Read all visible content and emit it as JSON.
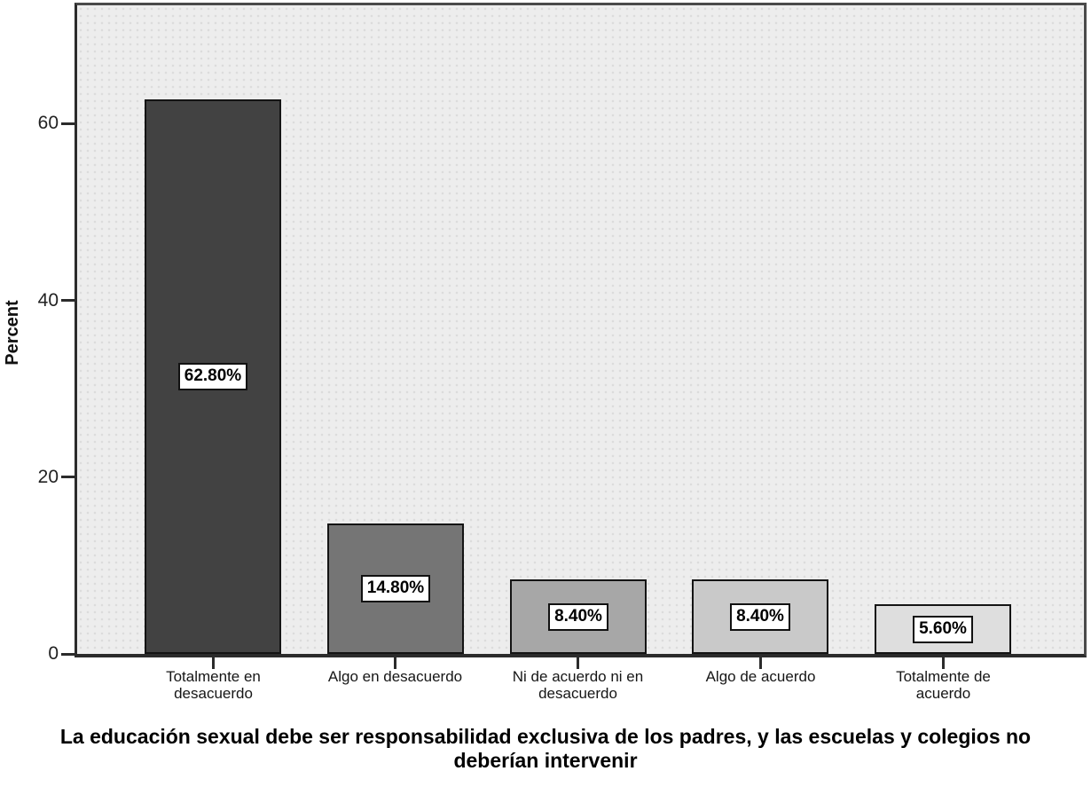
{
  "chart_data": {
    "type": "bar",
    "title": "",
    "xlabel": "La educación sexual debe ser responsabilidad exclusiva de los padres, y las escuelas y colegios no deberían intervenir",
    "ylabel": "Percent",
    "categories": [
      "Totalmente en desacuerdo",
      "Algo en desacuerdo",
      "Ni de acuerdo ni en desacuerdo",
      "Algo de acuerdo",
      "Totalmente de acuerdo"
    ],
    "values": [
      62.8,
      14.8,
      8.4,
      8.4,
      5.6
    ],
    "data_labels": [
      "62.80%",
      "14.80%",
      "8.40%",
      "8.40%",
      "5.60%"
    ],
    "yticks": [
      "0",
      "20",
      "40",
      "60"
    ],
    "ylim": [
      0,
      73.4
    ],
    "grid": false,
    "legend": "none",
    "bar_colors": [
      "#424242",
      "#757575",
      "#a7a7a7",
      "#c9c9c9",
      "#dedede"
    ],
    "plot_background": "#ededed",
    "bar_border_color": "#141414"
  }
}
